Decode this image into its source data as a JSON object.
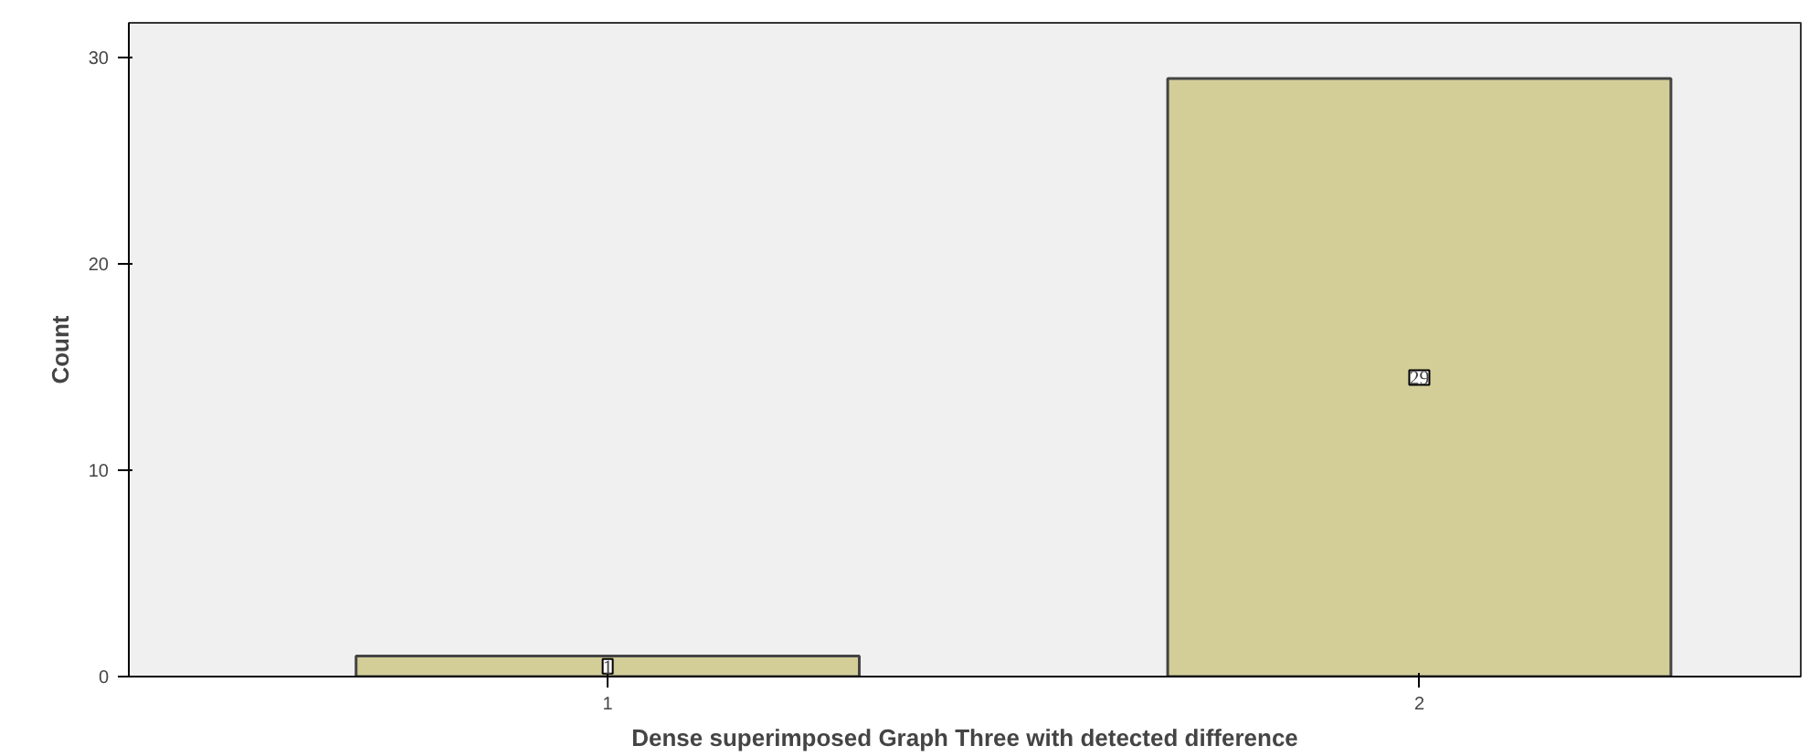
{
  "chart_data": {
    "type": "bar",
    "categories": [
      "1",
      "2"
    ],
    "values": [
      1,
      29
    ],
    "color": "#d3ce98",
    "xlabel": "Dense superimposed Graph Three with detected difference",
    "ylabel": "Count",
    "ylim": [
      0,
      31.7
    ],
    "yticks": [
      0,
      10,
      20,
      30
    ],
    "data_labels": true,
    "grid": false
  }
}
